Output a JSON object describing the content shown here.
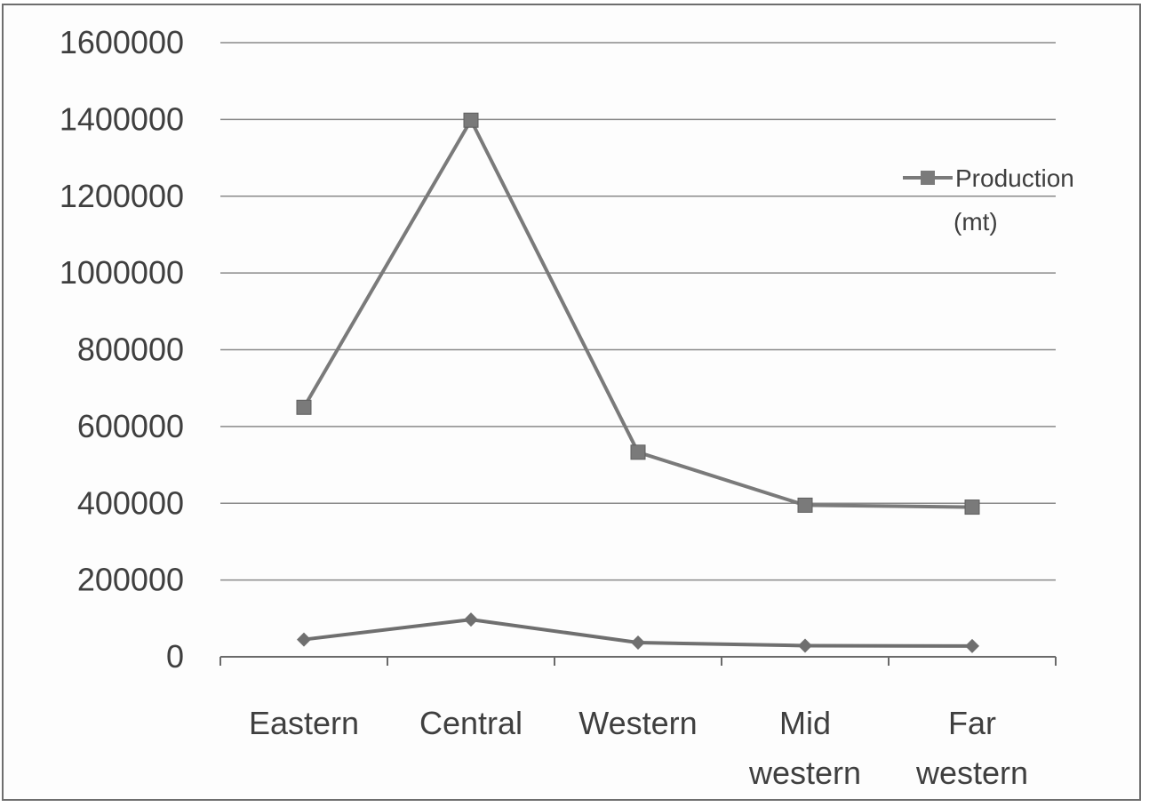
{
  "chart_data": {
    "type": "line",
    "categories": [
      [
        "Eastern"
      ],
      [
        "Central"
      ],
      [
        "Western"
      ],
      [
        "Mid",
        "western"
      ],
      [
        "Far",
        "western"
      ]
    ],
    "series": [
      {
        "name": "Production (mt)",
        "legend_lines": [
          "Production",
          "(mt)"
        ],
        "values": [
          650000,
          1398000,
          533000,
          395000,
          390000
        ],
        "marker": "square",
        "color": "#7a7a7a"
      },
      {
        "values": [
          45000,
          97000,
          37000,
          29000,
          28000
        ],
        "marker": "diamond",
        "color": "#6f6f6f"
      }
    ],
    "ylim": [
      0,
      1600000
    ],
    "yticks": [
      "0",
      "200000",
      "400000",
      "600000",
      "800000",
      "1000000",
      "1200000",
      "1400000",
      "1600000"
    ],
    "grid": true,
    "legend_position": "right"
  }
}
